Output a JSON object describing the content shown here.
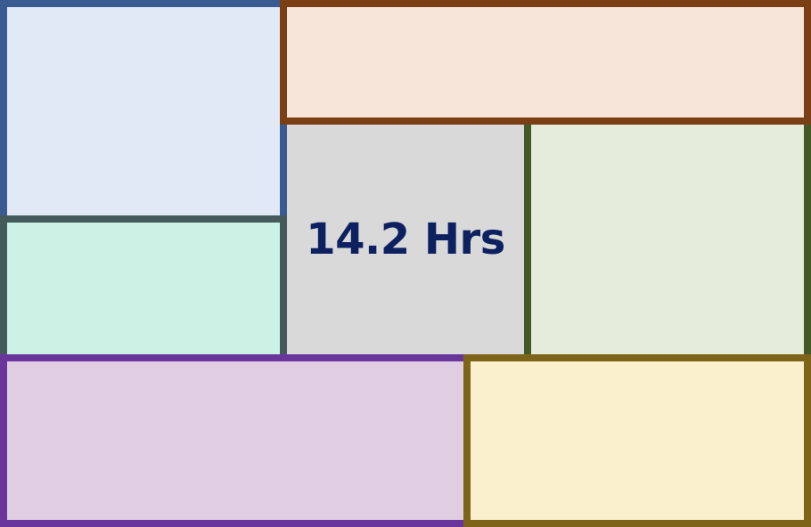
{
  "metric": {
    "value": "14.2 Hrs",
    "color": "#0d2160"
  },
  "background_color": "#d9d9d9",
  "panels": [
    {
      "id": "panel-blue",
      "fill": "#e0e9f5",
      "border": "#3a5a92"
    },
    {
      "id": "panel-orange",
      "fill": "#f8e5d9",
      "border": "#7b3f16"
    },
    {
      "id": "panel-teal",
      "fill": "#ccf2e6",
      "border": "#455a5a"
    },
    {
      "id": "panel-green",
      "fill": "#e5edda",
      "border": "#445a26"
    },
    {
      "id": "panel-purple",
      "fill": "#e0cde1",
      "border": "#6b369b"
    },
    {
      "id": "panel-gold",
      "fill": "#fbf0ce",
      "border": "#7d6419"
    }
  ]
}
